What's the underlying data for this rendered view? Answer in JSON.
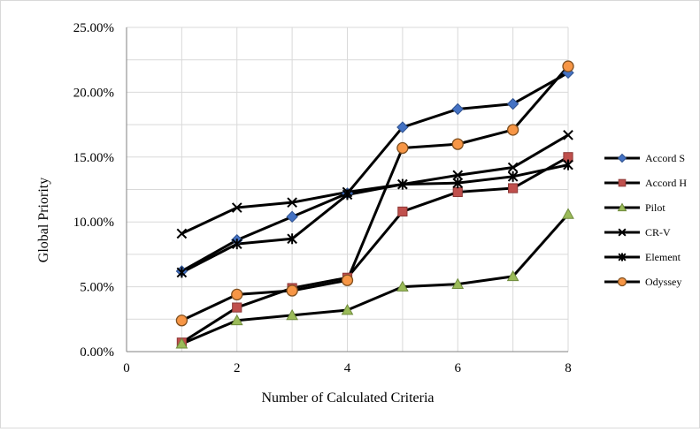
{
  "chart_data": {
    "type": "line",
    "xlabel": "Number of Calculated Criteria",
    "ylabel": "Global Priority",
    "xlim": [
      0,
      8
    ],
    "ylim": [
      0,
      25
    ],
    "x_ticks": [
      "0",
      "2",
      "4",
      "6",
      "8"
    ],
    "y_ticks": [
      "0.00%",
      "5.00%",
      "10.00%",
      "15.00%",
      "20.00%",
      "25.00%"
    ],
    "y_unit": "percent",
    "grid": "vertical and horizontal gridlines",
    "legend_position": "right",
    "x": [
      1,
      2,
      3,
      4,
      5,
      6,
      7,
      8
    ],
    "series": [
      {
        "name": "Accord S",
        "marker": "diamond",
        "marker_color": "#4472c4",
        "values": [
          6.2,
          8.6,
          10.4,
          12.2,
          17.3,
          18.7,
          19.1,
          21.5
        ]
      },
      {
        "name": "Accord H",
        "marker": "square",
        "marker_color": "#c0504d",
        "values": [
          0.7,
          3.4,
          4.9,
          5.7,
          10.8,
          12.3,
          12.6,
          15.0
        ]
      },
      {
        "name": "Pilot",
        "marker": "triangle",
        "marker_color": "#9bbb59",
        "values": [
          0.6,
          2.4,
          2.8,
          3.2,
          5.0,
          5.2,
          5.8,
          10.6
        ]
      },
      {
        "name": "CR-V",
        "marker": "x",
        "marker_color": "#000000",
        "values": [
          9.1,
          11.1,
          11.5,
          12.3,
          12.9,
          13.6,
          14.2,
          16.7
        ]
      },
      {
        "name": "Element",
        "marker": "star",
        "marker_color": "#000000",
        "values": [
          6.1,
          8.3,
          8.7,
          12.1,
          12.9,
          13.0,
          13.5,
          14.4
        ]
      },
      {
        "name": "Odyssey",
        "marker": "circle",
        "marker_color": "#f79646",
        "values": [
          2.4,
          4.4,
          4.7,
          5.5,
          15.7,
          16.0,
          17.1,
          22.0
        ]
      }
    ]
  }
}
